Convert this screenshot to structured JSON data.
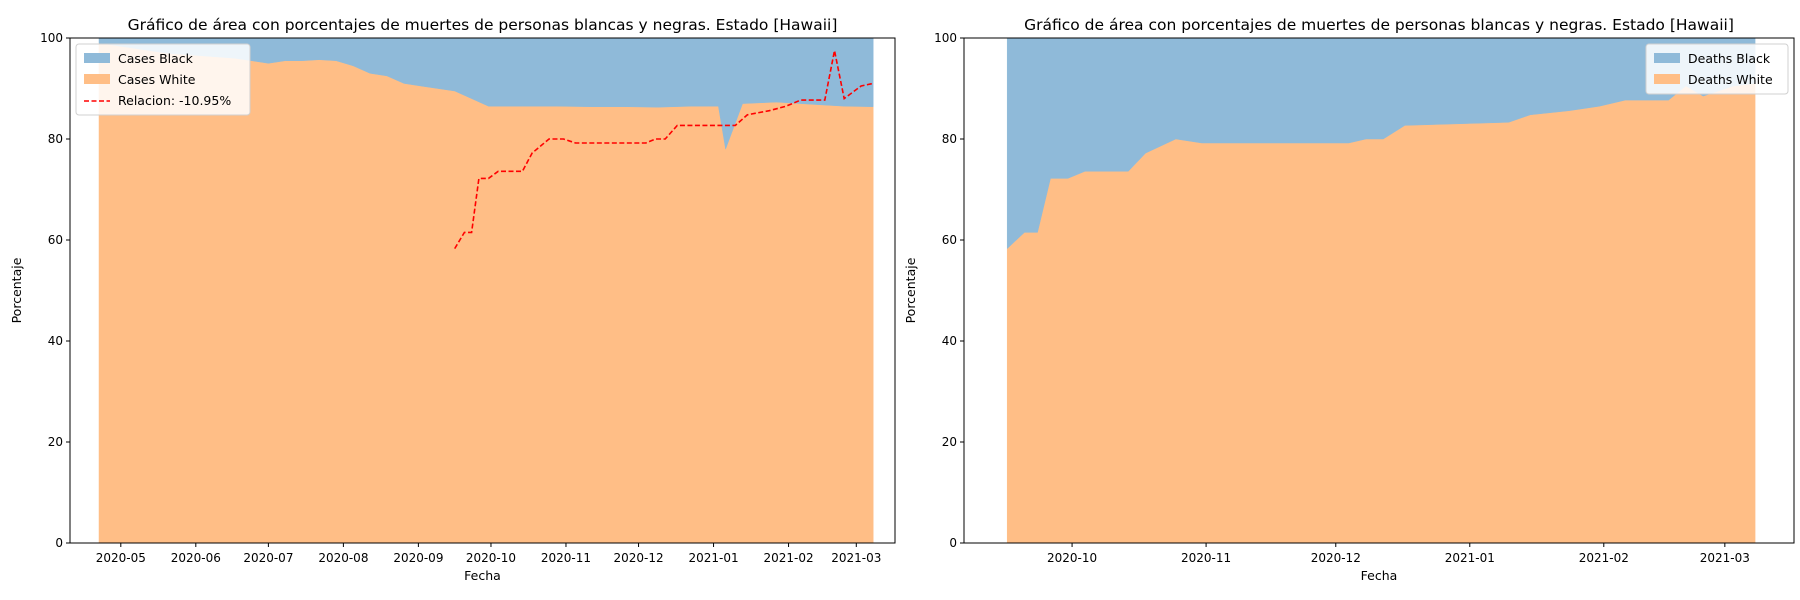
{
  "chart_data": [
    {
      "type": "area",
      "stacked": true,
      "title": "Gráfico de área con porcentajes de muertes de personas blancas y negras. Estado [Hawaii]",
      "xlabel": "Fecha",
      "ylabel": "Porcentaje",
      "xlim": [
        "2020-04-10",
        "2021-03-17"
      ],
      "ylim": [
        0,
        100
      ],
      "yticks": [
        0,
        20,
        40,
        60,
        80,
        100
      ],
      "xticks": [
        "2020-05-01",
        "2020-06-01",
        "2020-07-01",
        "2020-08-01",
        "2020-09-01",
        "2020-10-01",
        "2020-11-01",
        "2020-12-01",
        "2021-01-01",
        "2021-02-01",
        "2021-03-01"
      ],
      "xtick_labels": [
        "2020-05",
        "2020-06",
        "2020-07",
        "2020-08",
        "2020-09",
        "2020-10",
        "2020-11",
        "2020-12",
        "2021-01",
        "2021-02",
        "2021-03"
      ],
      "grid": false,
      "legend_position": "upper-left",
      "x": [
        "2020-04-22",
        "2020-05-06",
        "2020-05-20",
        "2020-06-03",
        "2020-06-17",
        "2020-06-24",
        "2020-07-01",
        "2020-07-08",
        "2020-07-15",
        "2020-07-22",
        "2020-07-29",
        "2020-08-05",
        "2020-08-12",
        "2020-08-19",
        "2020-08-26",
        "2020-09-02",
        "2020-09-09",
        "2020-09-16",
        "2020-09-23",
        "2020-09-30",
        "2020-10-14",
        "2020-10-28",
        "2020-11-11",
        "2020-11-25",
        "2020-12-09",
        "2020-12-23",
        "2020-12-30",
        "2021-01-03",
        "2021-01-06",
        "2021-01-13",
        "2021-01-27",
        "2021-02-10",
        "2021-02-24",
        "2021-03-08"
      ],
      "series": [
        {
          "name": "Cases White",
          "color": "#ffbe86",
          "values": [
            99,
            98,
            97,
            96.5,
            96,
            95.5,
            95,
            95.5,
            95.5,
            95.7,
            95.5,
            94.5,
            93,
            92.5,
            91,
            90.5,
            90,
            89.5,
            88,
            86.5,
            86.5,
            86.5,
            86.4,
            86.4,
            86.3,
            86.5,
            86.5,
            86.5,
            78,
            87,
            87.3,
            86.9,
            86.5,
            86.4
          ]
        },
        {
          "name": "Cases Black",
          "color": "#8fbad9",
          "values": [
            1,
            2,
            3,
            3.5,
            4,
            4.5,
            5,
            4.5,
            4.5,
            4.3,
            4.5,
            5.5,
            7,
            7.5,
            9,
            9.5,
            10,
            10.5,
            12,
            13.5,
            13.5,
            13.5,
            13.6,
            13.6,
            13.7,
            13.5,
            13.5,
            13.5,
            22,
            13,
            12.7,
            13.1,
            13.5,
            13.6
          ]
        }
      ],
      "ratio_line": {
        "name": "Relacion: -10.95%",
        "color": "#ff0000",
        "style": "dashed",
        "x": [
          "2020-09-16",
          "2020-09-20",
          "2020-09-23",
          "2020-09-26",
          "2020-09-30",
          "2020-10-04",
          "2020-10-10",
          "2020-10-14",
          "2020-10-18",
          "2020-10-25",
          "2020-10-31",
          "2020-11-05",
          "2020-11-20",
          "2020-11-28",
          "2020-12-04",
          "2020-12-08",
          "2020-12-12",
          "2020-12-17",
          "2021-01-10",
          "2021-01-15",
          "2021-01-24",
          "2021-01-31",
          "2021-02-06",
          "2021-02-13",
          "2021-02-16",
          "2021-02-20",
          "2021-02-24",
          "2021-03-03",
          "2021-03-08"
        ],
        "values": [
          58.3,
          61.5,
          61.5,
          72.2,
          72.2,
          73.6,
          73.6,
          73.6,
          77.2,
          80.0,
          80.0,
          79.2,
          79.2,
          79.2,
          79.2,
          80.0,
          80.0,
          82.7,
          82.7,
          84.8,
          85.6,
          86.5,
          87.7,
          87.7,
          87.7,
          97.5,
          88.0,
          90.5,
          91.0
        ]
      }
    },
    {
      "type": "area",
      "stacked": true,
      "title": "Gráfico de área con porcentajes de muertes de personas blancas y negras. Estado [Hawaii]",
      "xlabel": "Fecha",
      "ylabel": "Porcentaje",
      "xlim": [
        "2020-09-06",
        "2021-03-17"
      ],
      "ylim": [
        0,
        100
      ],
      "yticks": [
        0,
        20,
        40,
        60,
        80,
        100
      ],
      "xticks": [
        "2020-10-01",
        "2020-11-01",
        "2020-12-01",
        "2021-01-01",
        "2021-02-01",
        "2021-03-01"
      ],
      "xtick_labels": [
        "2020-10",
        "2020-11",
        "2020-12",
        "2021-01",
        "2021-02",
        "2021-03"
      ],
      "grid": false,
      "legend_position": "upper-right",
      "x": [
        "2020-09-16",
        "2020-09-20",
        "2020-09-23",
        "2020-09-26",
        "2020-09-30",
        "2020-10-04",
        "2020-10-10",
        "2020-10-14",
        "2020-10-18",
        "2020-10-25",
        "2020-10-31",
        "2020-11-05",
        "2020-11-20",
        "2020-11-28",
        "2020-12-04",
        "2020-12-08",
        "2020-12-12",
        "2020-12-17",
        "2021-01-10",
        "2021-01-15",
        "2021-01-24",
        "2021-01-31",
        "2021-02-06",
        "2021-02-13",
        "2021-02-16",
        "2021-02-20",
        "2021-02-24",
        "2021-03-03",
        "2021-03-08"
      ],
      "series": [
        {
          "name": "Deaths White",
          "color": "#ffbe86",
          "values": [
            58.3,
            61.5,
            61.5,
            72.2,
            72.2,
            73.6,
            73.6,
            73.6,
            77.2,
            80.0,
            79.2,
            79.2,
            79.2,
            79.2,
            79.2,
            80.0,
            80.0,
            82.7,
            83.3,
            84.8,
            85.6,
            86.5,
            87.7,
            87.7,
            87.7,
            90.5,
            88.5,
            90.5,
            91.0
          ]
        },
        {
          "name": "Deaths Black",
          "color": "#8fbad9",
          "values": [
            41.7,
            38.5,
            38.5,
            27.8,
            27.8,
            26.4,
            26.4,
            26.4,
            22.8,
            20.0,
            20.8,
            20.8,
            20.8,
            20.8,
            20.8,
            20.0,
            20.0,
            17.3,
            16.7,
            15.2,
            14.4,
            13.5,
            12.3,
            12.3,
            12.3,
            9.5,
            11.5,
            9.5,
            9.0
          ]
        }
      ]
    }
  ]
}
